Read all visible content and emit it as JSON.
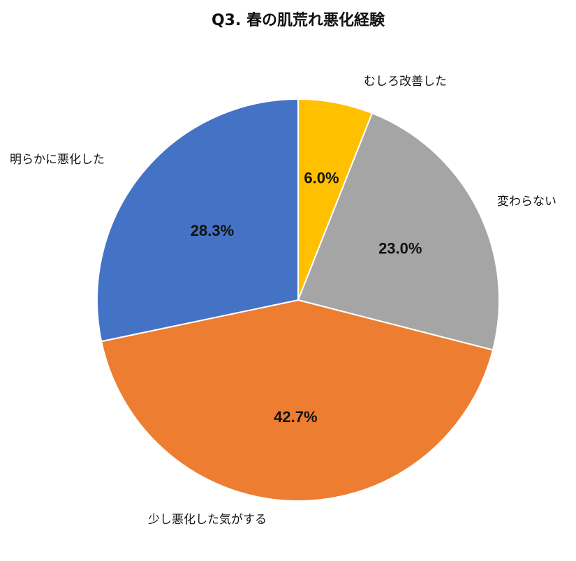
{
  "chart_data": {
    "type": "pie",
    "title": "Q3. 春の肌荒れ悪化経験",
    "slices": [
      {
        "label": "むしろ改善した",
        "value": 6.0,
        "value_label": "6.0%",
        "color": "#FFC000"
      },
      {
        "label": "変わらない",
        "value": 23.0,
        "value_label": "23.0%",
        "color": "#A5A5A5"
      },
      {
        "label": "少し悪化した気がする",
        "value": 42.7,
        "value_label": "42.7%",
        "color": "#ED7D31"
      },
      {
        "label": "明らかに悪化した",
        "value": 28.3,
        "value_label": "28.3%",
        "color": "#4472C4"
      }
    ],
    "start_angle": "12 o'clock",
    "direction": "clockwise",
    "labels": "outside, no leader lines"
  }
}
